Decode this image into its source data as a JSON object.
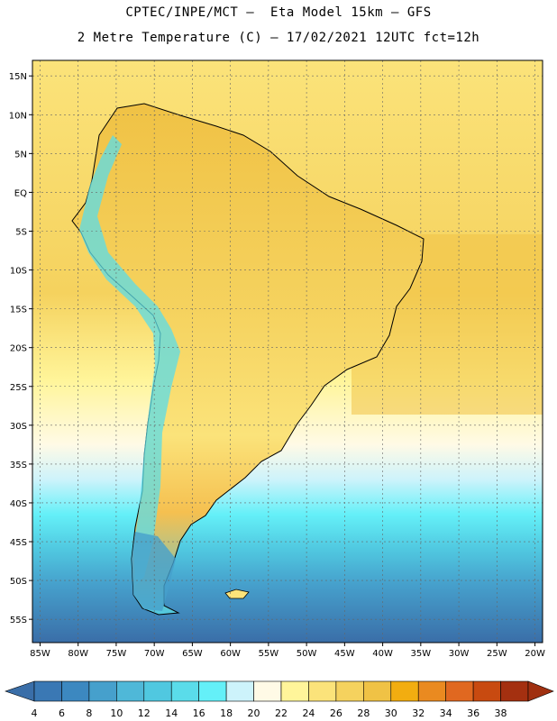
{
  "title": {
    "line1": "CPTEC/INPE/MCT –  Eta Model 15km – GFS",
    "line2": "2 Metre Temperature (C) – 17/02/2021 12UTC fct=12h"
  },
  "map": {
    "lon_range": [
      -86,
      -19
    ],
    "lat_range": [
      -58,
      17
    ],
    "lon_ticks": [
      "85W",
      "80W",
      "75W",
      "70W",
      "65W",
      "60W",
      "55W",
      "50W",
      "45W",
      "40W",
      "35W",
      "30W",
      "25W",
      "20W"
    ],
    "lat_ticks": [
      "15N",
      "10N",
      "5N",
      "EQ",
      "5S",
      "10S",
      "15S",
      "20S",
      "25S",
      "30S",
      "35S",
      "40S",
      "45S",
      "50S",
      "55S"
    ],
    "grid": true
  },
  "colorbar": {
    "labels": [
      "4",
      "6",
      "8",
      "10",
      "12",
      "14",
      "16",
      "18",
      "20",
      "22",
      "24",
      "26",
      "28",
      "30",
      "32",
      "34",
      "36",
      "38"
    ],
    "colors": [
      "#3a78b4",
      "#3c88c0",
      "#46a0cc",
      "#4fb8d8",
      "#50c8e0",
      "#5adcea",
      "#64f0f8",
      "#cdf3fb",
      "#fffae6",
      "#fff59a",
      "#fbe37a",
      "#f5d25e",
      "#f0c245",
      "#f2ad10",
      "#ea8a20",
      "#e06820",
      "#c84a10",
      "#a43010"
    ],
    "low_color": "#3a6ea8",
    "high_color": "#a03010"
  }
}
